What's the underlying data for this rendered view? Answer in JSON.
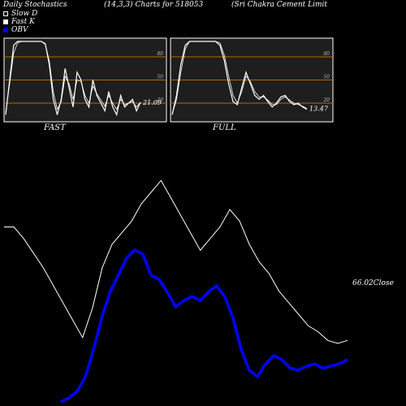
{
  "header": {
    "title": "Daily Stochastics",
    "params": "(14,3,3) Charts for 518053",
    "company": "(Sri  Chakra  Cement Limit"
  },
  "legend": [
    {
      "label": "Slow  D",
      "style": "outline"
    },
    {
      "label": "Fast  K",
      "style": "filled"
    },
    {
      "label": "OBV",
      "style": "blue"
    }
  ],
  "colors": {
    "background": "#000000",
    "panel": "#1e1e1e",
    "grid": "#b26a00",
    "obv": "#0000ff",
    "price": "#ffffff"
  },
  "chart_data": [
    {
      "type": "line",
      "panel": "FAST",
      "label": "FAST",
      "ylim": [
        0,
        100
      ],
      "gridlines": [
        20,
        50,
        80
      ],
      "tick_labels": [
        "80",
        "50",
        "20"
      ],
      "last_value_label": "21.09",
      "series": [
        {
          "name": "Fast  K",
          "values": [
            5,
            50,
            95,
            100,
            100,
            100,
            100,
            100,
            100,
            100,
            97,
            70,
            25,
            5,
            25,
            65,
            40,
            15,
            60,
            50,
            25,
            15,
            50,
            30,
            20,
            10,
            35,
            15,
            5,
            30,
            15,
            20,
            25,
            10,
            21
          ]
        },
        {
          "name": "Slow  D",
          "values": [
            8,
            45,
            85,
            98,
            100,
            100,
            100,
            100,
            100,
            100,
            96,
            75,
            35,
            12,
            22,
            55,
            45,
            25,
            50,
            48,
            30,
            20,
            42,
            32,
            24,
            16,
            30,
            20,
            12,
            25,
            18,
            20,
            22,
            15,
            21
          ]
        }
      ]
    },
    {
      "type": "line",
      "panel": "FULL",
      "label": "FULL",
      "ylim": [
        0,
        100
      ],
      "gridlines": [
        20,
        50,
        80
      ],
      "tick_labels": [
        "80",
        "50",
        "20"
      ],
      "last_value_label": "13.47",
      "series": [
        {
          "name": "Fast  K",
          "values": [
            5,
            30,
            70,
            95,
            100,
            100,
            100,
            100,
            100,
            100,
            100,
            95,
            75,
            45,
            22,
            18,
            40,
            60,
            45,
            30,
            25,
            30,
            22,
            15,
            20,
            28,
            30,
            22,
            18,
            20,
            15,
            12
          ]
        },
        {
          "name": "Slow  D",
          "values": [
            5,
            25,
            60,
            90,
            100,
            100,
            100,
            100,
            100,
            100,
            100,
            98,
            82,
            55,
            30,
            20,
            35,
            55,
            48,
            35,
            28,
            28,
            24,
            18,
            18,
            25,
            28,
            24,
            20,
            18,
            16,
            13
          ]
        }
      ]
    },
    {
      "type": "line",
      "panel": "price-obv",
      "last_value_label": "66.02",
      "last_value_suffix": "Close",
      "series": [
        {
          "name": "Close",
          "values": [
            52,
            52,
            48,
            43,
            38,
            32,
            26,
            20,
            14,
            24,
            38,
            46,
            50,
            54,
            60,
            64,
            68,
            62,
            56,
            50,
            44,
            48,
            52,
            58,
            54,
            46,
            40,
            36,
            30,
            26,
            22,
            18,
            16,
            13,
            12,
            13
          ]
        },
        {
          "name": "OBV",
          "values": [
            -30,
            -28,
            -25,
            -18,
            -5,
            10,
            22,
            30,
            38,
            42,
            40,
            30,
            28,
            22,
            15,
            18,
            20,
            18,
            22,
            25,
            20,
            10,
            -5,
            -15,
            -18,
            -12,
            -8,
            -10,
            -14,
            -15,
            -13,
            -12,
            -14,
            -13,
            -12,
            -10
          ]
        }
      ]
    }
  ]
}
